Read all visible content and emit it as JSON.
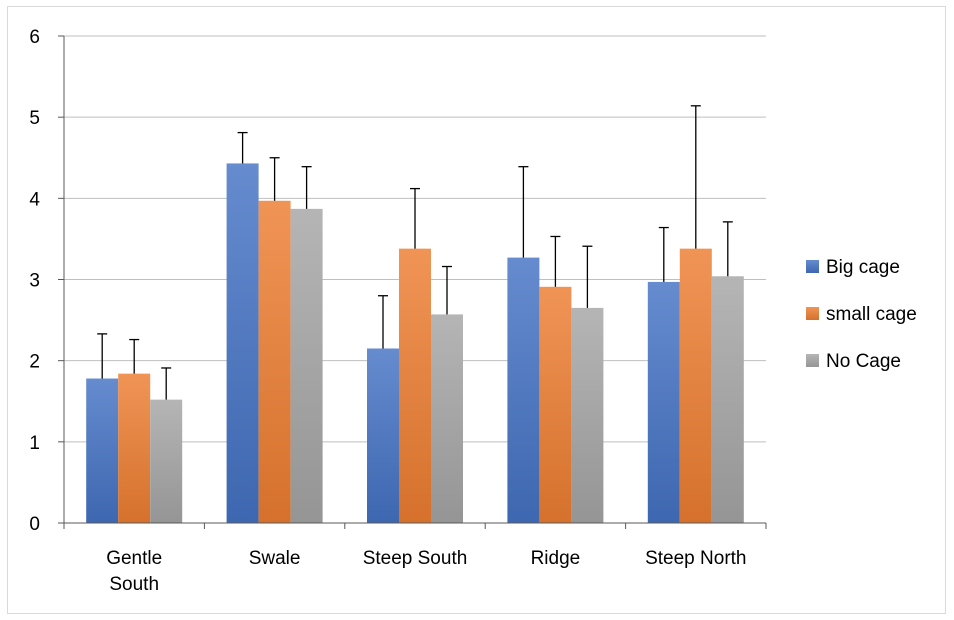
{
  "chart_data": {
    "type": "bar",
    "categories": [
      "Gentle South",
      "Swale",
      "Steep South",
      "Ridge",
      "Steep North"
    ],
    "category_lines": [
      [
        "Gentle",
        "South"
      ],
      [
        "Swale"
      ],
      [
        "Steep South"
      ],
      [
        "Ridge"
      ],
      [
        "Steep North"
      ]
    ],
    "series": [
      {
        "name": "Big cage",
        "color": "#4472c4",
        "values": [
          1.78,
          4.43,
          2.15,
          3.27,
          2.97
        ],
        "errors": [
          0.55,
          0.38,
          0.65,
          1.12,
          0.67
        ]
      },
      {
        "name": "small cage",
        "color": "#ed7d31",
        "values": [
          1.84,
          3.97,
          3.38,
          2.91,
          3.38
        ],
        "errors": [
          0.42,
          0.53,
          0.74,
          0.62,
          1.76
        ]
      },
      {
        "name": "No Cage",
        "color": "#a5a5a5",
        "values": [
          1.52,
          3.87,
          2.57,
          2.65,
          3.04
        ],
        "errors": [
          0.39,
          0.52,
          0.59,
          0.76,
          0.67
        ]
      }
    ],
    "ylim": [
      0,
      6
    ],
    "yticks": [
      0,
      1,
      2,
      3,
      4,
      5,
      6
    ],
    "grid": true,
    "legend": "right",
    "title": "",
    "xlabel": "",
    "ylabel": ""
  }
}
